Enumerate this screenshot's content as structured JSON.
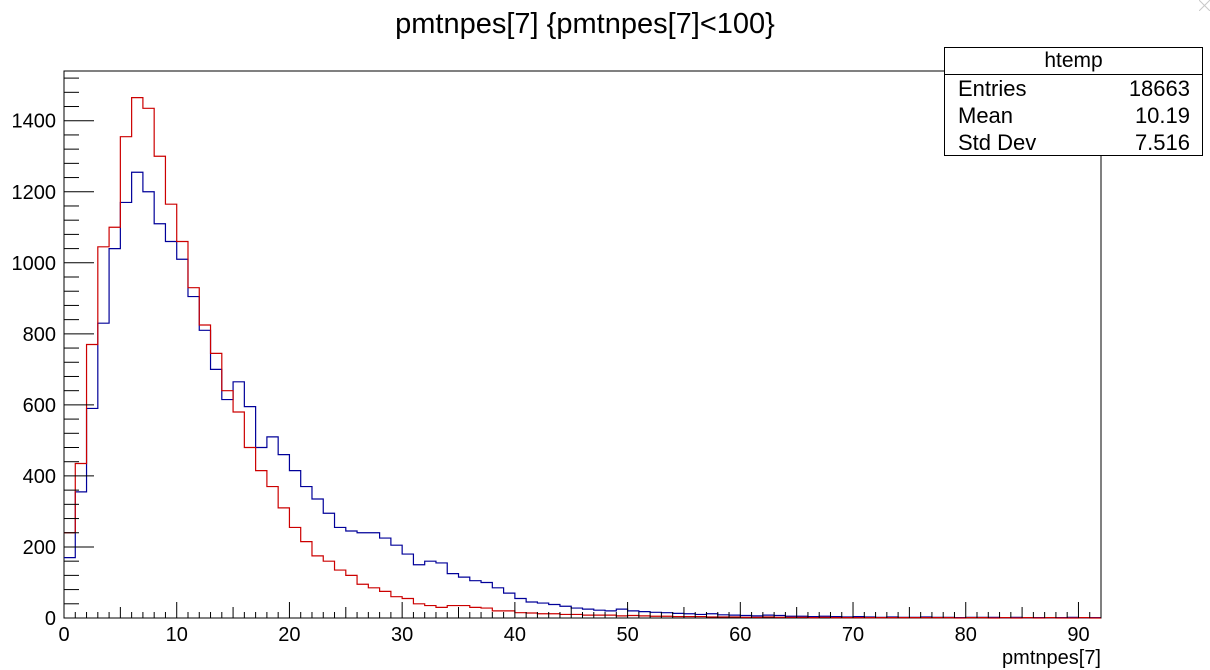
{
  "chart_data": {
    "type": "histogram",
    "title": "pmtnpes[7] {pmtnpes[7]<100}",
    "xlabel": "pmtnpes[7]",
    "ylabel": "",
    "xlim": [
      0,
      92
    ],
    "ylim": [
      0,
      1540
    ],
    "bin_width": 1,
    "x_ticks": [
      0,
      10,
      20,
      30,
      40,
      50,
      60,
      70,
      80,
      90
    ],
    "y_ticks": [
      0,
      200,
      400,
      600,
      800,
      1000,
      1200,
      1400
    ],
    "grid": false,
    "stats_box": {
      "name": "htemp",
      "rows": [
        {
          "label": "Entries",
          "value": "18663"
        },
        {
          "label": "Mean",
          "value": "10.19"
        },
        {
          "label": "Std Dev",
          "value": "7.516"
        }
      ],
      "placement": "top-right"
    },
    "series": [
      {
        "color": "#000099",
        "values": [
          170,
          355,
          590,
          830,
          1040,
          1170,
          1255,
          1200,
          1110,
          1060,
          1010,
          905,
          810,
          700,
          615,
          665,
          595,
          480,
          510,
          460,
          415,
          370,
          335,
          295,
          255,
          245,
          240,
          240,
          225,
          205,
          180,
          150,
          160,
          155,
          125,
          115,
          105,
          100,
          85,
          70,
          55,
          45,
          42,
          38,
          33,
          28,
          25,
          22,
          20,
          25,
          20,
          18,
          16,
          15,
          13,
          12,
          10,
          12,
          9,
          8,
          7,
          6,
          8,
          7,
          5,
          5,
          4,
          5,
          4,
          3,
          4,
          3,
          2,
          3,
          2,
          2,
          3,
          2,
          2,
          1,
          2,
          2,
          2,
          1,
          2,
          1,
          1,
          1,
          1,
          2,
          1,
          1
        ]
      },
      {
        "color": "#cc0000",
        "values": [
          240,
          435,
          770,
          1045,
          1100,
          1355,
          1465,
          1435,
          1300,
          1165,
          1060,
          930,
          825,
          745,
          640,
          580,
          480,
          415,
          370,
          310,
          255,
          215,
          175,
          160,
          135,
          120,
          95,
          85,
          75,
          60,
          55,
          40,
          35,
          30,
          35,
          35,
          30,
          28,
          20,
          20,
          15,
          14,
          12,
          12,
          10,
          10,
          8,
          8,
          8,
          6,
          7,
          6,
          5,
          5,
          4,
          4,
          4,
          3,
          3,
          3,
          2,
          2,
          3,
          2,
          2,
          2,
          1,
          2,
          1,
          1,
          1,
          1,
          1,
          1,
          1,
          1,
          1,
          1,
          1,
          0,
          1,
          1,
          0,
          1,
          0,
          1,
          0,
          1,
          0,
          0,
          1,
          0
        ]
      }
    ]
  }
}
